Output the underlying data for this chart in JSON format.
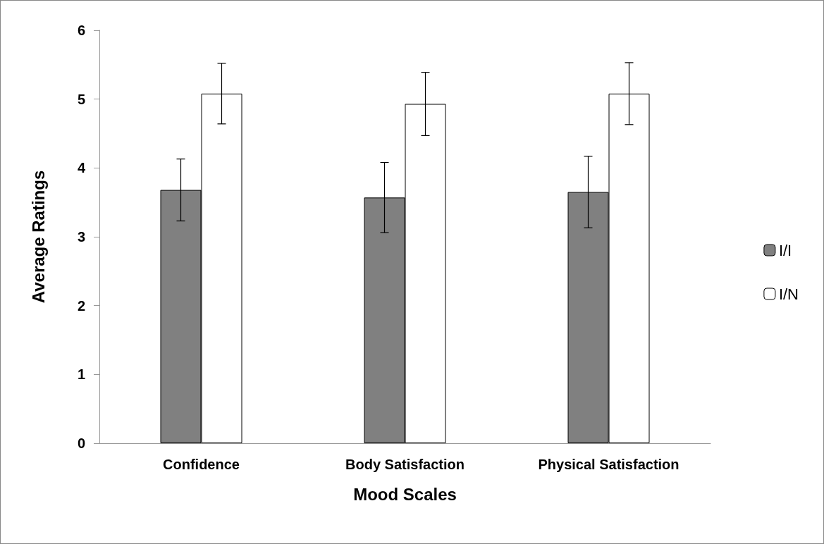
{
  "chart_data": {
    "type": "bar",
    "xlabel": "Mood Scales",
    "ylabel": "Average Ratings",
    "categories": [
      "Confidence",
      "Body Satisfaction",
      "Physical Satisfaction"
    ],
    "series": [
      {
        "name": "I/I",
        "color": "#808080",
        "values": [
          3.68,
          3.57,
          3.65
        ],
        "errors": [
          0.45,
          0.51,
          0.52
        ]
      },
      {
        "name": "I/N",
        "color": "#ffffff",
        "values": [
          5.08,
          4.93,
          5.08
        ],
        "errors": [
          0.44,
          0.46,
          0.45
        ]
      }
    ],
    "ylim": [
      0,
      6
    ],
    "yticks": [
      0,
      1,
      2,
      3,
      4,
      5,
      6
    ],
    "grid": false,
    "legend": "right"
  }
}
